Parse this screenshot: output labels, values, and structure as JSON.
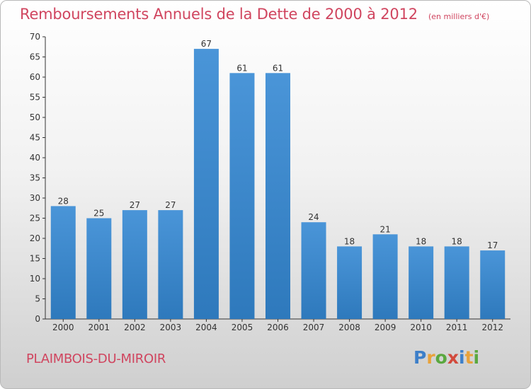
{
  "header": {
    "title": "Remboursements Annuels de la Dette de 2000 à 2012",
    "unit": "(en milliers d'€)"
  },
  "footer": {
    "place": "PLAIMBOIS-DU-MIROIR",
    "brand_letters": [
      {
        "char": "P",
        "color": "#3d7fc9"
      },
      {
        "char": "r",
        "color": "#e8a23a"
      },
      {
        "char": "o",
        "color": "#5aa83f"
      },
      {
        "char": "x",
        "color": "#d24a3c"
      },
      {
        "char": "i",
        "color": "#3d7fc9"
      },
      {
        "char": "t",
        "color": "#e8a23a"
      },
      {
        "char": "i",
        "color": "#5aa83f"
      }
    ]
  },
  "colors": {
    "bar": "#4a95d8",
    "bar_dark": "#2e79bc",
    "title": "#d0455f"
  },
  "chart_data": {
    "type": "bar",
    "categories": [
      "2000",
      "2001",
      "2002",
      "2003",
      "2004",
      "2005",
      "2006",
      "2007",
      "2008",
      "2009",
      "2010",
      "2011",
      "2012"
    ],
    "values": [
      28,
      25,
      27,
      27,
      67,
      61,
      61,
      24,
      18,
      21,
      18,
      18,
      17
    ],
    "title": "Remboursements Annuels de la Dette de 2000 à 2012",
    "ylabel": "",
    "xlabel": "",
    "ylim": [
      0,
      70
    ],
    "yticks": [
      0,
      5,
      10,
      15,
      20,
      25,
      30,
      35,
      40,
      45,
      50,
      55,
      60,
      65,
      70
    ],
    "grid": false,
    "legend": "none"
  }
}
